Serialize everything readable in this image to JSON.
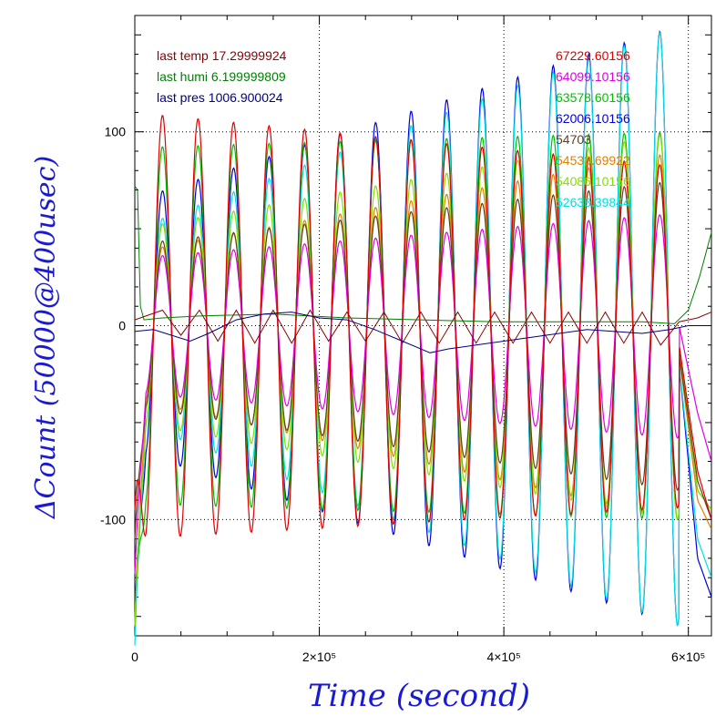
{
  "chart_data": {
    "type": "line",
    "title": "",
    "xlabel": "Time (second)",
    "ylabel": "ΔCount (50000@400usec)",
    "xlim": [
      0,
      625000
    ],
    "ylim": [
      -160,
      160
    ],
    "grid": "dotted at labeled ticks",
    "x_ticks": [
      {
        "value": 0,
        "label": "0"
      },
      {
        "value": 200000,
        "label": "2×10⁵"
      },
      {
        "value": 400000,
        "label": "4×10⁵"
      },
      {
        "value": 600000,
        "label": "6×10⁵"
      }
    ],
    "y_ticks": [
      {
        "value": 100,
        "label": "100"
      },
      {
        "value": 0,
        "label": "0"
      },
      {
        "value": -100,
        "label": "-100"
      }
    ],
    "annotations_left": [
      {
        "text": "last temp 17.29999924",
        "color": "#8b0000"
      },
      {
        "text": "last humi 6.199999809",
        "color": "#008000"
      },
      {
        "text": "last pres 1006.900024",
        "color": "#000080"
      }
    ],
    "legend_position": "top-right",
    "oscillation": {
      "period_seconds": 38500,
      "first_peak_seconds": 30000
    },
    "oscillating_series": [
      {
        "name": "67229.60156",
        "color": "#e00000",
        "start": -95,
        "amplitude_start": 110,
        "amplitude_end": 88,
        "offset_start": 0,
        "offset_end": -6,
        "tail": [
          [
            590000,
            -10
          ],
          [
            610000,
            -75
          ],
          [
            625000,
            -100
          ]
        ]
      },
      {
        "name": "64099.10156",
        "color": "#e000e0",
        "start": -128,
        "amplitude_start": 35,
        "amplitude_end": 58,
        "offset_start": 0,
        "offset_end": 0,
        "tail": [
          [
            590000,
            0
          ],
          [
            610000,
            -45
          ],
          [
            625000,
            -70
          ]
        ]
      },
      {
        "name": "63578.60156",
        "color": "#00c000",
        "start": -155,
        "amplitude_start": 92,
        "amplitude_end": 100,
        "offset_start": 0,
        "offset_end": 0,
        "tail": [
          [
            590000,
            -10
          ],
          [
            610000,
            -85
          ],
          [
            625000,
            -95
          ]
        ]
      },
      {
        "name": "62006.10156",
        "color": "#0000e0",
        "start": -150,
        "amplitude_start": 65,
        "amplitude_end": 155,
        "offset_start": 0,
        "offset_end": 0,
        "tail": [
          [
            590000,
            -20
          ],
          [
            610000,
            -120
          ],
          [
            625000,
            -140
          ]
        ]
      },
      {
        "name": "54703",
        "color": "#604020",
        "start": -110,
        "amplitude_start": 42,
        "amplitude_end": 80,
        "offset_start": 0,
        "offset_end": -5,
        "tail": [
          [
            590000,
            -15
          ],
          [
            610000,
            -80
          ],
          [
            625000,
            -100
          ]
        ]
      },
      {
        "name": "54533.69922",
        "color": "#e08000",
        "start": -155,
        "amplitude_start": 38,
        "amplitude_end": 95,
        "offset_start": 0,
        "offset_end": -5,
        "tail": [
          [
            590000,
            -15
          ],
          [
            610000,
            -90
          ],
          [
            625000,
            -105
          ]
        ]
      },
      {
        "name": "54086.10156",
        "color": "#80e000",
        "start": -155,
        "amplitude_start": 50,
        "amplitude_end": 100,
        "offset_start": 0,
        "offset_end": 0,
        "tail": [
          [
            590000,
            -10
          ],
          [
            610000,
            -85
          ],
          [
            625000,
            -95
          ]
        ]
      },
      {
        "name": "52638.39844",
        "color": "#00e0e0",
        "start": -165,
        "amplitude_start": 50,
        "amplitude_end": 155,
        "offset_start": 0,
        "offset_end": 0,
        "tail": [
          [
            590000,
            -20
          ],
          [
            610000,
            -110
          ],
          [
            625000,
            -130
          ]
        ]
      }
    ],
    "environment_series": [
      {
        "label": "temp",
        "color": "#8b0000",
        "points": [
          [
            0,
            3
          ],
          [
            30000,
            8
          ],
          [
            50000,
            -5
          ],
          [
            70000,
            8
          ],
          [
            90000,
            -8
          ],
          [
            110000,
            8
          ],
          [
            130000,
            -9
          ],
          [
            150000,
            8
          ],
          [
            170000,
            -9
          ],
          [
            190000,
            8
          ],
          [
            210000,
            -8
          ],
          [
            230000,
            7
          ],
          [
            250000,
            -8
          ],
          [
            270000,
            7
          ],
          [
            290000,
            -9
          ],
          [
            310000,
            7
          ],
          [
            330000,
            -9
          ],
          [
            350000,
            7
          ],
          [
            370000,
            -9
          ],
          [
            390000,
            7
          ],
          [
            410000,
            -9
          ],
          [
            430000,
            7
          ],
          [
            450000,
            -9
          ],
          [
            470000,
            7
          ],
          [
            490000,
            -9
          ],
          [
            510000,
            7
          ],
          [
            530000,
            -9
          ],
          [
            550000,
            7
          ],
          [
            570000,
            -10
          ],
          [
            590000,
            2
          ],
          [
            610000,
            4
          ],
          [
            625000,
            7
          ]
        ]
      },
      {
        "label": "humi",
        "color": "#008000",
        "points": [
          [
            0,
            72
          ],
          [
            3000,
            70
          ],
          [
            6000,
            10
          ],
          [
            10000,
            3
          ],
          [
            30000,
            4
          ],
          [
            70000,
            5
          ],
          [
            150000,
            6
          ],
          [
            230000,
            4
          ],
          [
            310000,
            3
          ],
          [
            390000,
            2
          ],
          [
            470000,
            2
          ],
          [
            550000,
            2
          ],
          [
            585000,
            1
          ],
          [
            600000,
            8
          ],
          [
            612000,
            25
          ],
          [
            625000,
            48
          ]
        ]
      },
      {
        "label": "pres",
        "color": "#000080",
        "points": [
          [
            0,
            -3
          ],
          [
            20000,
            -2
          ],
          [
            40000,
            -5
          ],
          [
            60000,
            -8
          ],
          [
            80000,
            -4
          ],
          [
            110000,
            3
          ],
          [
            140000,
            6
          ],
          [
            170000,
            7
          ],
          [
            200000,
            4
          ],
          [
            230000,
            3
          ],
          [
            260000,
            -2
          ],
          [
            290000,
            -8
          ],
          [
            320000,
            -14
          ],
          [
            340000,
            -12
          ],
          [
            370000,
            -10
          ],
          [
            400000,
            -8
          ],
          [
            430000,
            -6
          ],
          [
            460000,
            -4
          ],
          [
            490000,
            -2
          ],
          [
            520000,
            -3
          ],
          [
            550000,
            -4
          ],
          [
            580000,
            -2
          ],
          [
            600000,
            0
          ],
          [
            625000,
            0
          ]
        ]
      }
    ]
  }
}
